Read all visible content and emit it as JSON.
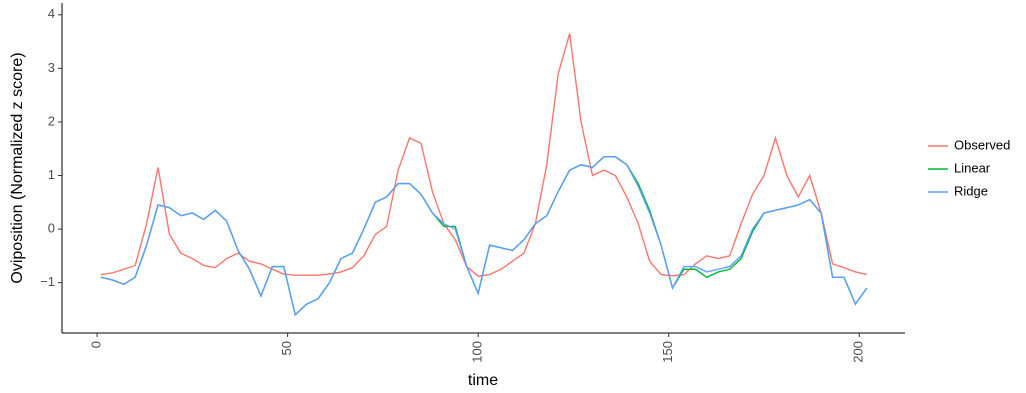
{
  "chart_data": {
    "type": "line",
    "x_label": "time",
    "y_label": "Oviposition (Normalized z score)",
    "x": [
      1,
      4,
      7,
      10,
      13,
      16,
      19,
      22,
      25,
      28,
      31,
      34,
      37,
      40,
      43,
      46,
      49,
      52,
      55,
      58,
      61,
      64,
      67,
      70,
      73,
      76,
      79,
      82,
      85,
      88,
      91,
      94,
      97,
      100,
      103,
      106,
      109,
      112,
      115,
      118,
      121,
      124,
      127,
      130,
      133,
      136,
      139,
      142,
      145,
      148,
      151,
      154,
      157,
      160,
      163,
      166,
      169,
      172,
      175,
      178,
      181,
      184,
      187,
      190,
      193,
      196,
      199,
      202
    ],
    "series": [
      {
        "name": "Observed",
        "color": "#f8766d",
        "values": [
          -0.85,
          -0.82,
          -0.75,
          -0.68,
          0.1,
          1.15,
          -0.1,
          -0.45,
          -0.55,
          -0.68,
          -0.72,
          -0.55,
          -0.45,
          -0.6,
          -0.65,
          -0.75,
          -0.84,
          -0.86,
          -0.86,
          -0.86,
          -0.84,
          -0.8,
          -0.72,
          -0.5,
          -0.1,
          0.05,
          1.1,
          1.7,
          1.6,
          0.7,
          0.1,
          -0.2,
          -0.7,
          -0.88,
          -0.85,
          -0.75,
          -0.6,
          -0.45,
          0.1,
          1.2,
          2.9,
          3.65,
          2.0,
          1.0,
          1.1,
          1.0,
          0.6,
          0.1,
          -0.6,
          -0.85,
          -0.87,
          -0.85,
          -0.65,
          -0.5,
          -0.55,
          -0.5,
          0.1,
          0.65,
          1.0,
          1.7,
          1.0,
          0.6,
          1.0,
          0.3,
          -0.65,
          -0.72,
          -0.8,
          -0.85
        ]
      },
      {
        "name": "Linear",
        "color": "#00ba38",
        "values": [
          -0.9,
          -0.95,
          -1.03,
          -0.9,
          -0.3,
          0.45,
          0.4,
          0.25,
          0.3,
          0.18,
          0.35,
          0.15,
          -0.4,
          -0.75,
          -1.25,
          -0.7,
          -0.7,
          -1.6,
          -1.4,
          -1.3,
          -1.0,
          -0.55,
          -0.45,
          0.0,
          0.5,
          0.6,
          0.85,
          0.85,
          0.65,
          0.3,
          0.05,
          0.05,
          -0.7,
          -1.2,
          -0.3,
          -0.35,
          -0.4,
          -0.2,
          0.1,
          0.25,
          0.7,
          1.1,
          1.2,
          1.15,
          1.35,
          1.35,
          1.2,
          0.85,
          0.35,
          -0.3,
          -1.1,
          -0.75,
          -0.75,
          -0.9,
          -0.8,
          -0.75,
          -0.55,
          -0.05,
          0.3,
          0.35,
          0.4,
          0.45,
          0.55,
          0.3,
          -0.9,
          -0.9,
          -1.4,
          -1.1
        ]
      },
      {
        "name": "Ridge",
        "color": "#619cff",
        "values": [
          -0.9,
          -0.95,
          -1.03,
          -0.9,
          -0.3,
          0.45,
          0.4,
          0.25,
          0.3,
          0.18,
          0.35,
          0.15,
          -0.4,
          -0.75,
          -1.25,
          -0.7,
          -0.7,
          -1.6,
          -1.4,
          -1.3,
          -1.0,
          -0.55,
          -0.45,
          0.0,
          0.5,
          0.6,
          0.85,
          0.85,
          0.65,
          0.3,
          0.1,
          0.0,
          -0.7,
          -1.2,
          -0.3,
          -0.35,
          -0.4,
          -0.2,
          0.1,
          0.25,
          0.7,
          1.1,
          1.2,
          1.15,
          1.35,
          1.35,
          1.2,
          0.8,
          0.3,
          -0.3,
          -1.1,
          -0.7,
          -0.7,
          -0.8,
          -0.75,
          -0.7,
          -0.5,
          0.0,
          0.3,
          0.35,
          0.4,
          0.45,
          0.55,
          0.3,
          -0.9,
          -0.9,
          -1.4,
          -1.1
        ]
      }
    ],
    "xlim": [
      -9.2,
      212
    ],
    "xticks": [
      0,
      50,
      100,
      150,
      200
    ],
    "ylim": [
      -1.94,
      4.22
    ],
    "yticks": [
      {
        "value": -1,
        "label": "−1"
      },
      0,
      1,
      2,
      3,
      4
    ],
    "grid": false,
    "legend": "right"
  }
}
